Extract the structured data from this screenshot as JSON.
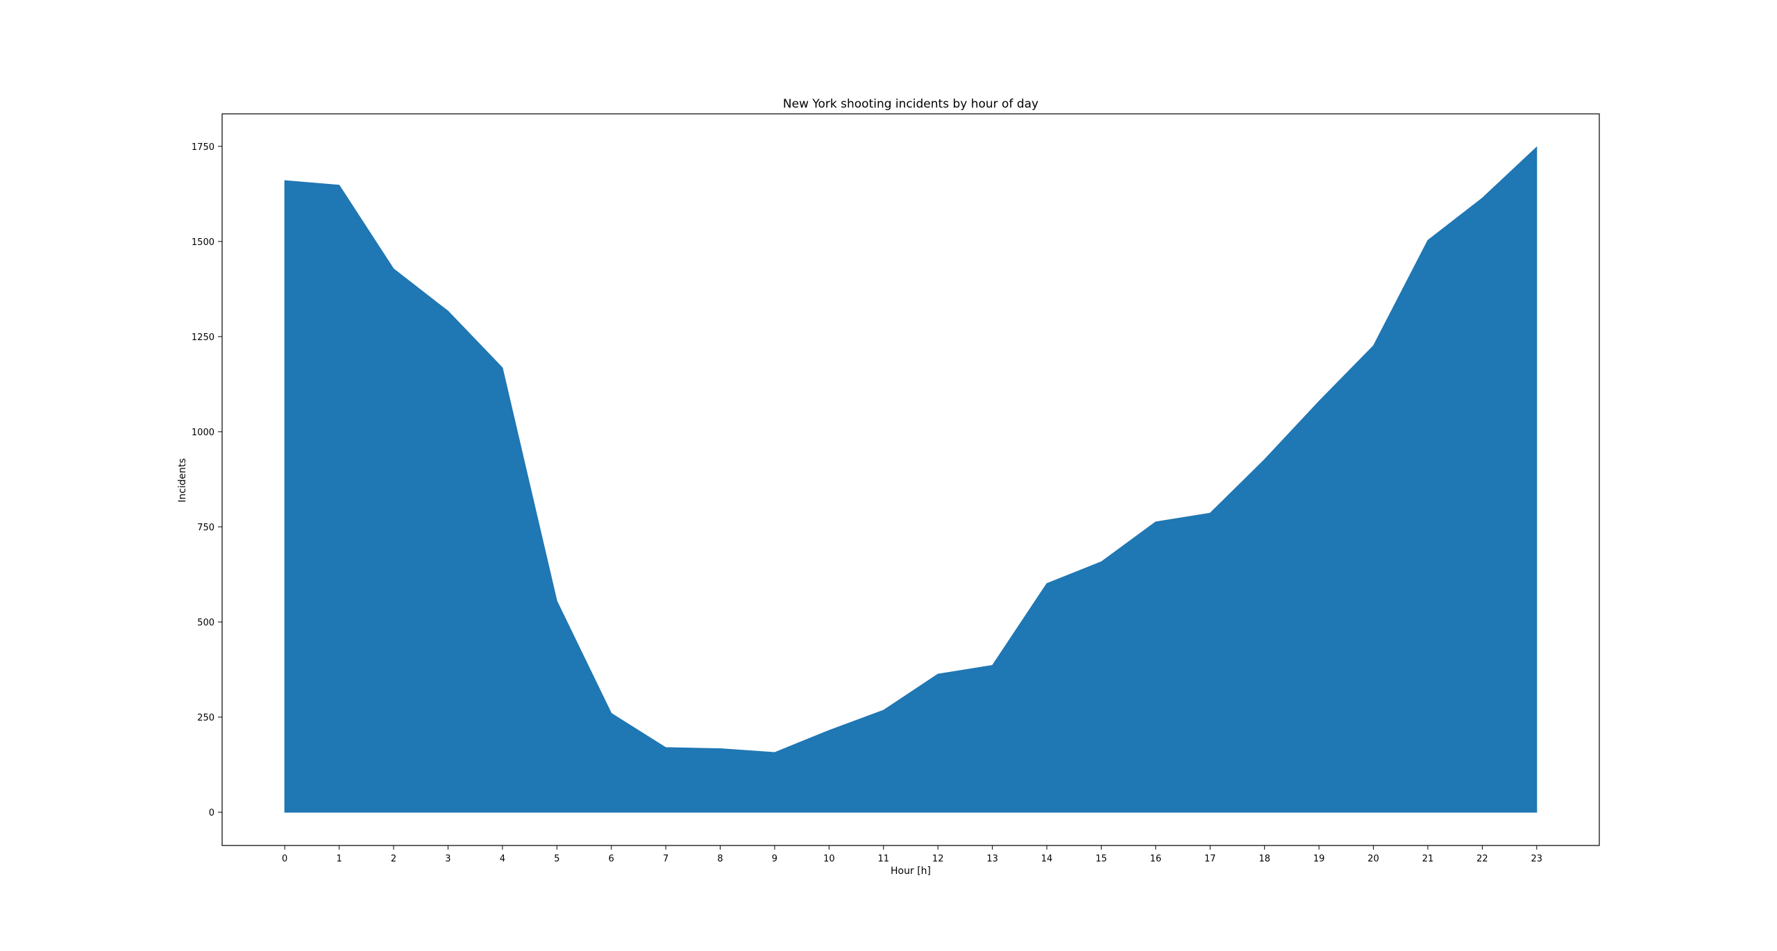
{
  "chart_data": {
    "type": "area",
    "title": "New York shooting incidents by hour of day",
    "xlabel": "Hour [h]",
    "ylabel": "Incidents",
    "x": [
      0,
      1,
      2,
      3,
      4,
      5,
      6,
      7,
      8,
      9,
      10,
      11,
      12,
      13,
      14,
      15,
      16,
      17,
      18,
      19,
      20,
      21,
      22,
      23
    ],
    "values": [
      1660,
      1648,
      1428,
      1317,
      1168,
      555,
      260,
      170,
      167,
      157,
      215,
      268,
      363,
      386,
      601,
      658,
      763,
      786,
      927,
      1080,
      1226,
      1503,
      1614,
      1748
    ],
    "xticks": [
      "0",
      "1",
      "2",
      "3",
      "4",
      "5",
      "6",
      "7",
      "8",
      "9",
      "10",
      "11",
      "12",
      "13",
      "14",
      "15",
      "16",
      "17",
      "18",
      "19",
      "20",
      "21",
      "22",
      "23"
    ],
    "yticks": [
      "0",
      "250",
      "500",
      "750",
      "1000",
      "1250",
      "1500",
      "1750"
    ],
    "ytick_values": [
      0,
      250,
      500,
      750,
      1000,
      1250,
      1500,
      1750
    ],
    "xlim": [
      -1.15,
      24.15
    ],
    "ylim": [
      -87.4,
      1835.4
    ],
    "grid": false,
    "fill_color": "#1f77b4"
  }
}
